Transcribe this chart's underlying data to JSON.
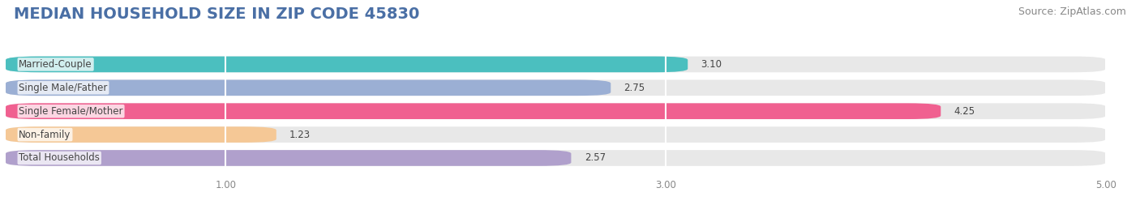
{
  "title": "MEDIAN HOUSEHOLD SIZE IN ZIP CODE 45830",
  "source": "Source: ZipAtlas.com",
  "categories": [
    "Married-Couple",
    "Single Male/Father",
    "Single Female/Mother",
    "Non-family",
    "Total Households"
  ],
  "values": [
    3.1,
    2.75,
    4.25,
    1.23,
    2.57
  ],
  "bar_colors": [
    "#4BBFBF",
    "#9BAFD4",
    "#F06090",
    "#F5C896",
    "#B0A0CC"
  ],
  "bar_bg_color": "#E8E8E8",
  "xlim": [
    0,
    5.0
  ],
  "xticks": [
    1.0,
    3.0,
    5.0
  ],
  "xtick_labels": [
    "1.00",
    "3.00",
    "5.00"
  ],
  "title_fontsize": 14,
  "source_fontsize": 9,
  "label_fontsize": 8.5,
  "value_fontsize": 8.5,
  "bar_height": 0.68,
  "bar_gap": 0.32,
  "background_color": "#FFFFFF",
  "grid_color": "#FFFFFF",
  "label_box_color": "#FFFFFF",
  "label_text_color": "#444444",
  "title_color": "#4A6FA5",
  "axis_color": "#888888"
}
